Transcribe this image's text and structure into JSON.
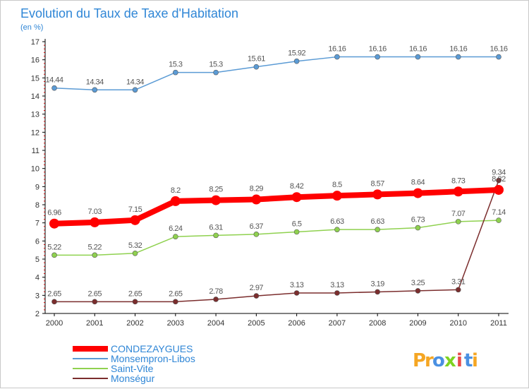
{
  "chart_data": {
    "type": "line",
    "title": "Evolution du Taux de Taxe d'Habitation",
    "subtitle": "(en %)",
    "x": [
      "2000",
      "2001",
      "2002",
      "2003",
      "2004",
      "2005",
      "2006",
      "2007",
      "2008",
      "2009",
      "2010",
      "2011"
    ],
    "ylim": [
      2,
      17
    ],
    "yticks": [
      "2",
      "3",
      "4",
      "5",
      "6",
      "7",
      "8",
      "9",
      "10",
      "11",
      "12",
      "13",
      "14",
      "15",
      "16",
      "17"
    ],
    "grid": false,
    "legend_position": "bottom-left",
    "series": [
      {
        "name": "CONDEZAYGUES",
        "color": "#ff0000",
        "values": [
          6.96,
          7.03,
          7.15,
          8.2,
          8.25,
          8.29,
          8.42,
          8.5,
          8.57,
          8.64,
          8.73,
          8.82
        ],
        "labels": [
          "6.96",
          "7.03",
          "7.15",
          "8.2",
          "8.25",
          "8.29",
          "8.42",
          "8.5",
          "8.57",
          "8.64",
          "8.73",
          "8.82"
        ]
      },
      {
        "name": "Monsempron-Libos",
        "color": "#5b9bd5",
        "values": [
          14.44,
          14.34,
          14.34,
          15.3,
          15.3,
          15.61,
          15.92,
          16.16,
          16.16,
          16.16,
          16.16,
          16.16
        ],
        "labels": [
          "14.44",
          "14.34",
          "14.34",
          "15.3",
          "15.3",
          "15.61",
          "15.92",
          "16.16",
          "16.16",
          "16.16",
          "16.16",
          "16.16"
        ]
      },
      {
        "name": "Saint-Vite",
        "color": "#8fd14f",
        "values": [
          5.22,
          5.22,
          5.32,
          6.24,
          6.31,
          6.37,
          6.5,
          6.63,
          6.63,
          6.73,
          7.07,
          7.14
        ],
        "labels": [
          "5.22",
          "5.22",
          "5.32",
          "6.24",
          "6.31",
          "6.37",
          "6.5",
          "6.63",
          "6.63",
          "6.73",
          "7.07",
          "7.14"
        ]
      },
      {
        "name": "Monségur",
        "color": "#7b2d2d",
        "values": [
          2.65,
          2.65,
          2.65,
          2.65,
          2.78,
          2.97,
          3.13,
          3.13,
          3.19,
          3.25,
          3.31,
          9.34
        ],
        "labels": [
          "2.65",
          "2.65",
          "2.65",
          "2.65",
          "2.78",
          "2.97",
          "3.13",
          "3.13",
          "3.19",
          "3.25",
          "3.31",
          "9.34"
        ]
      }
    ]
  },
  "logo": {
    "letters": [
      "P",
      "r",
      "o",
      "x",
      "i",
      "t",
      "i"
    ],
    "colors": [
      "#f5a623",
      "#f5a623",
      "#4a90e2",
      "#7ed321",
      "#e84a4a",
      "#4a90e2",
      "#f5a623"
    ]
  }
}
